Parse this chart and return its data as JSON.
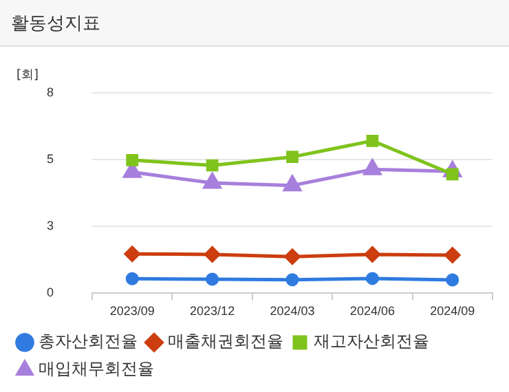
{
  "chart_data": {
    "type": "line",
    "title": "활동성지표",
    "ylabel": "[회]",
    "categories": [
      "2023/09",
      "2023/12",
      "2024/03",
      "2024/06",
      "2024/09"
    ],
    "series": [
      {
        "name": "총자산회전율",
        "color": "#2f7be0",
        "marker": "circle",
        "values": [
          0.58,
          0.56,
          0.54,
          0.59,
          0.53
        ]
      },
      {
        "name": "매출채권회전율",
        "color": "#cc3d0f",
        "marker": "diamond",
        "values": [
          1.57,
          1.55,
          1.46,
          1.55,
          1.52
        ]
      },
      {
        "name": "재고자산회전율",
        "color": "#7fc31c",
        "marker": "square",
        "values": [
          5.31,
          5.1,
          5.44,
          6.08,
          4.75
        ]
      },
      {
        "name": "매입채무회전율",
        "color": "#a77fdc",
        "marker": "triangle",
        "values": [
          4.83,
          4.4,
          4.3,
          4.94,
          4.86
        ]
      }
    ],
    "ylim": [
      0,
      8
    ],
    "yticks": [
      0,
      {
        "value": 2.667,
        "label": "3"
      },
      {
        "value": 5.333,
        "label": "5"
      },
      8
    ],
    "grid": "y",
    "legend": "bottom"
  }
}
